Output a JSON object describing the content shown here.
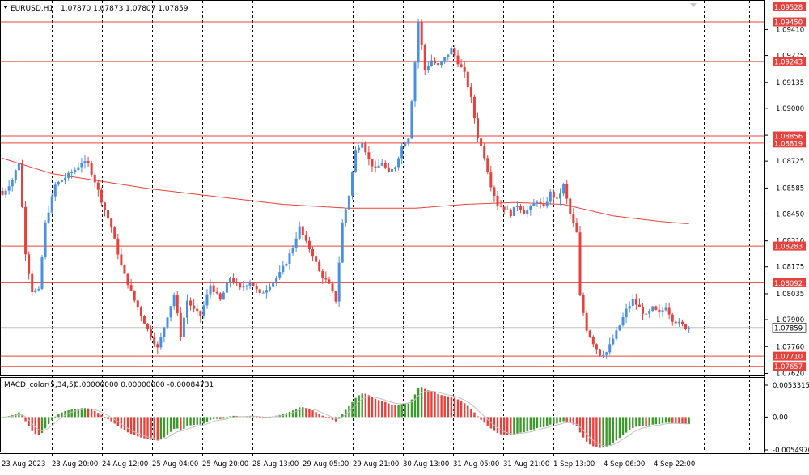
{
  "header": {
    "title": "EURUSD,H1",
    "ohlc": "1.07870 1.07873 1.07807 1.07859"
  },
  "colors": {
    "bull": "#4a90e2",
    "bear": "#e8413c",
    "ma": "#e8413c",
    "level": "#e8413c",
    "bid": "#c0c0c0",
    "macd_pos": "#3a9a2a",
    "macd_neg": "#e8413c",
    "signal": "#c0c0c0",
    "grid": "#000000"
  },
  "price_axis": {
    "ticks": [
      "1.09410",
      "1.09275",
      "1.09135",
      "1.09000",
      "1.08860",
      "1.08725",
      "1.08585",
      "1.08450",
      "1.08310",
      "1.08175",
      "1.08035",
      "1.07900",
      "1.07760",
      "1.07620"
    ]
  },
  "levels": [
    {
      "price": 1.09528,
      "label": "1.09528",
      "line": false
    },
    {
      "price": 1.0945,
      "label": "1.09450",
      "line": true
    },
    {
      "price": 1.09243,
      "label": "1.09243",
      "line": true
    },
    {
      "price": 1.08856,
      "label": "1.08856",
      "line": true
    },
    {
      "price": 1.08819,
      "label": "1.08819",
      "line": true
    },
    {
      "price": 1.08283,
      "label": "1.08283",
      "line": true
    },
    {
      "price": 1.08092,
      "label": "1.08092",
      "line": true
    },
    {
      "price": 1.0771,
      "label": "1.07710",
      "line": true
    },
    {
      "price": 1.07657,
      "label": "1.07657",
      "line": true
    }
  ],
  "current_price": {
    "price": 1.07859,
    "label": "1.07859"
  },
  "time_axis": {
    "labels": [
      "23 Aug 2023",
      "23 Aug 20:00",
      "24 Aug 12:00",
      "25 Aug 04:00",
      "25 Aug 20:00",
      "28 Aug 13:00",
      "29 Aug 05:00",
      "29 Aug 21:00",
      "30 Aug 13:00",
      "31 Aug 05:00",
      "31 Aug 21:00",
      "1 Sep 13:00",
      "4 Sep 06:00",
      "4 Sep 22:00"
    ]
  },
  "macd": {
    "title": "MACD_color(5,34,5)",
    "values": "0.00000000 0.00000000 -0.00084731",
    "ticks": [
      "0.0053315",
      "0.00",
      "-0.0054970"
    ]
  },
  "chart_data": {
    "type": "candlestick",
    "symbol": "EURUSD",
    "timeframe": "H1",
    "ohlc_last": {
      "open": 1.0787,
      "high": 1.07873,
      "low": 1.07807,
      "close": 1.07859
    },
    "ylim": [
      1.0762,
      1.09528
    ],
    "close_path": [
      {
        "i": 0,
        "close": 1.0855
      },
      {
        "i": 3,
        "close": 1.0863
      },
      {
        "i": 5,
        "close": 1.0872
      },
      {
        "i": 7,
        "close": 1.0825
      },
      {
        "i": 9,
        "close": 1.0805
      },
      {
        "i": 11,
        "close": 1.0805
      },
      {
        "i": 13,
        "close": 1.084
      },
      {
        "i": 16,
        "close": 1.086
      },
      {
        "i": 19,
        "close": 1.0864
      },
      {
        "i": 22,
        "close": 1.0868
      },
      {
        "i": 24,
        "close": 1.0872
      },
      {
        "i": 26,
        "close": 1.0871
      },
      {
        "i": 28,
        "close": 1.0862
      },
      {
        "i": 30,
        "close": 1.0852
      },
      {
        "i": 33,
        "close": 1.0838
      },
      {
        "i": 36,
        "close": 1.0818
      },
      {
        "i": 40,
        "close": 1.08
      },
      {
        "i": 44,
        "close": 1.0785
      },
      {
        "i": 47,
        "close": 1.0775
      },
      {
        "i": 50,
        "close": 1.0792
      },
      {
        "i": 52,
        "close": 1.0803
      },
      {
        "i": 54,
        "close": 1.0782
      },
      {
        "i": 56,
        "close": 1.08
      },
      {
        "i": 58,
        "close": 1.0795
      },
      {
        "i": 60,
        "close": 1.0792
      },
      {
        "i": 63,
        "close": 1.0808
      },
      {
        "i": 66,
        "close": 1.08
      },
      {
        "i": 69,
        "close": 1.0812
      },
      {
        "i": 72,
        "close": 1.0806
      },
      {
        "i": 75,
        "close": 1.081
      },
      {
        "i": 78,
        "close": 1.0803
      },
      {
        "i": 81,
        "close": 1.0808
      },
      {
        "i": 84,
        "close": 1.0814
      },
      {
        "i": 86,
        "close": 1.082
      },
      {
        "i": 88,
        "close": 1.0828
      },
      {
        "i": 90,
        "close": 1.0838
      },
      {
        "i": 92,
        "close": 1.083
      },
      {
        "i": 94,
        "close": 1.0824
      },
      {
        "i": 96,
        "close": 1.0815
      },
      {
        "i": 99,
        "close": 1.0808
      },
      {
        "i": 101,
        "close": 1.08
      },
      {
        "i": 103,
        "close": 1.084
      },
      {
        "i": 105,
        "close": 1.0855
      },
      {
        "i": 107,
        "close": 1.0878
      },
      {
        "i": 109,
        "close": 1.0883
      },
      {
        "i": 111,
        "close": 1.0873
      },
      {
        "i": 113,
        "close": 1.0868
      },
      {
        "i": 115,
        "close": 1.0872
      },
      {
        "i": 117,
        "close": 1.0866
      },
      {
        "i": 119,
        "close": 1.087
      },
      {
        "i": 121,
        "close": 1.088
      },
      {
        "i": 123,
        "close": 1.0885
      },
      {
        "i": 125,
        "close": 1.0924
      },
      {
        "i": 126,
        "close": 1.0945
      },
      {
        "i": 128,
        "close": 1.092
      },
      {
        "i": 130,
        "close": 1.0925
      },
      {
        "i": 132,
        "close": 1.0922
      },
      {
        "i": 134,
        "close": 1.0926
      },
      {
        "i": 136,
        "close": 1.0931
      },
      {
        "i": 138,
        "close": 1.0924
      },
      {
        "i": 140,
        "close": 1.0918
      },
      {
        "i": 142,
        "close": 1.0905
      },
      {
        "i": 144,
        "close": 1.0885
      },
      {
        "i": 146,
        "close": 1.0875
      },
      {
        "i": 148,
        "close": 1.086
      },
      {
        "i": 150,
        "close": 1.085
      },
      {
        "i": 152,
        "close": 1.0848
      },
      {
        "i": 154,
        "close": 1.0845
      },
      {
        "i": 156,
        "close": 1.085
      },
      {
        "i": 158,
        "close": 1.0846
      },
      {
        "i": 160,
        "close": 1.0848
      },
      {
        "i": 162,
        "close": 1.0852
      },
      {
        "i": 164,
        "close": 1.0848
      },
      {
        "i": 166,
        "close": 1.0856
      },
      {
        "i": 168,
        "close": 1.0852
      },
      {
        "i": 170,
        "close": 1.086
      },
      {
        "i": 172,
        "close": 1.0845
      },
      {
        "i": 174,
        "close": 1.0835
      },
      {
        "i": 175,
        "close": 1.0802
      },
      {
        "i": 177,
        "close": 1.0785
      },
      {
        "i": 179,
        "close": 1.0778
      },
      {
        "i": 181,
        "close": 1.0772
      },
      {
        "i": 183,
        "close": 1.0773
      },
      {
        "i": 185,
        "close": 1.078
      },
      {
        "i": 187,
        "close": 1.0787
      },
      {
        "i": 189,
        "close": 1.0795
      },
      {
        "i": 191,
        "close": 1.08
      },
      {
        "i": 193,
        "close": 1.0796
      },
      {
        "i": 195,
        "close": 1.0792
      },
      {
        "i": 197,
        "close": 1.0796
      },
      {
        "i": 199,
        "close": 1.0793
      },
      {
        "i": 201,
        "close": 1.0797
      },
      {
        "i": 203,
        "close": 1.079
      },
      {
        "i": 205,
        "close": 1.0788
      },
      {
        "i": 207,
        "close": 1.07859
      }
    ],
    "ma_path": [
      {
        "i": 0,
        "value": 1.0874
      },
      {
        "i": 15,
        "value": 1.0866
      },
      {
        "i": 30,
        "value": 1.0862
      },
      {
        "i": 45,
        "value": 1.0858
      },
      {
        "i": 65,
        "value": 1.0854
      },
      {
        "i": 85,
        "value": 1.085
      },
      {
        "i": 105,
        "value": 1.0848
      },
      {
        "i": 125,
        "value": 1.0848
      },
      {
        "i": 140,
        "value": 1.085
      },
      {
        "i": 155,
        "value": 1.0851
      },
      {
        "i": 170,
        "value": 1.085
      },
      {
        "i": 185,
        "value": 1.0844
      },
      {
        "i": 200,
        "value": 1.0841
      },
      {
        "i": 207,
        "value": 1.084
      }
    ],
    "macd_range": [
      -0.005497,
      0.0053315
    ]
  }
}
